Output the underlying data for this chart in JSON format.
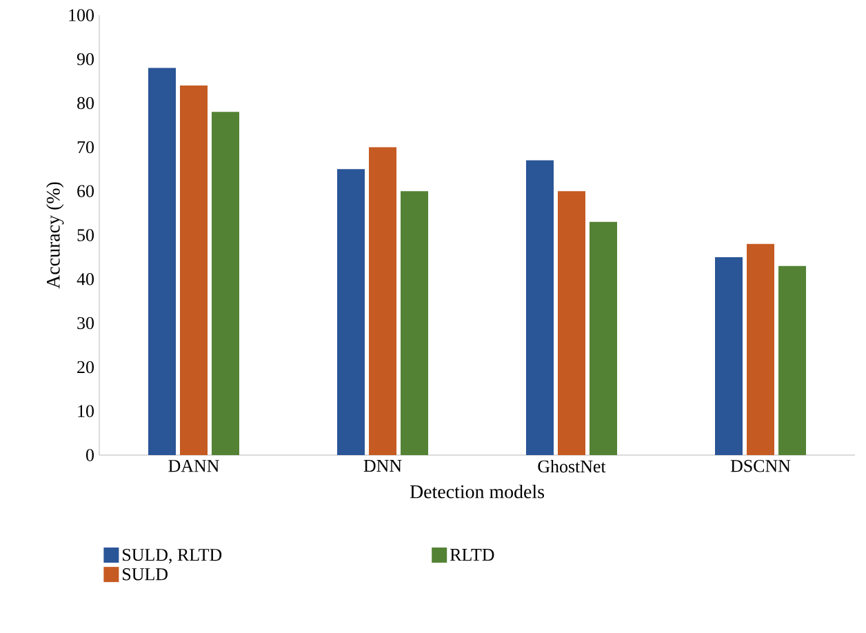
{
  "chart_data": {
    "type": "bar",
    "xlabel": "Detection models",
    "ylabel": "Accuracy (%)",
    "categories": [
      "DANN",
      "DNN",
      "GhostNet",
      "DSCNN"
    ],
    "series": [
      {
        "name": "SULD, RLTD",
        "color": "#2a5597",
        "values": [
          88,
          65,
          67,
          45
        ]
      },
      {
        "name": "SULD",
        "color": "#c55a22",
        "values": [
          84,
          70,
          60,
          48
        ]
      },
      {
        "name": "RLTD",
        "color": "#548235",
        "values": [
          78,
          60,
          53,
          43
        ]
      }
    ],
    "ylim": [
      0,
      100
    ],
    "yticks": [
      0,
      10,
      20,
      30,
      40,
      50,
      60,
      70,
      80,
      90,
      100
    ],
    "legend": "bottom",
    "grid": false
  }
}
